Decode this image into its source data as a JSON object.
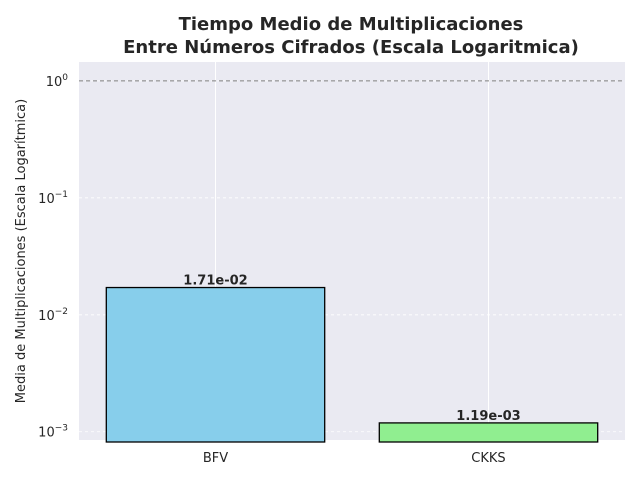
{
  "chart_data": {
    "type": "bar",
    "title_line1": "Tiempo Medio de Multiplicaciones",
    "title_line2": "Entre Números Cifrados (Escala Logaritmica)",
    "xlabel": "",
    "ylabel": "Media de Multiplicaciones (Escala Logarítmica)",
    "yscale": "log",
    "ylim": [
      0.00085,
      1.45
    ],
    "categories": [
      "BFV",
      "CKKS"
    ],
    "values": [
      0.0171,
      0.00119
    ],
    "data_labels": [
      "1.71e-02",
      "1.19e-03"
    ],
    "bar_colors": [
      "#87CEEB",
      "#90EE90"
    ],
    "bar_edge_color": "#000000",
    "yticks": [
      {
        "value": 0.001,
        "base": "10",
        "exp": "−3"
      },
      {
        "value": 0.01,
        "base": "10",
        "exp": "−2"
      },
      {
        "value": 0.1,
        "base": "10",
        "exp": "−1"
      },
      {
        "value": 1,
        "base": "10",
        "exp": "0"
      }
    ],
    "reference_line": {
      "y": 1,
      "style": "dashed",
      "color": "#808080"
    },
    "grid": true,
    "background": "#EAEAF2",
    "legend": "none"
  }
}
